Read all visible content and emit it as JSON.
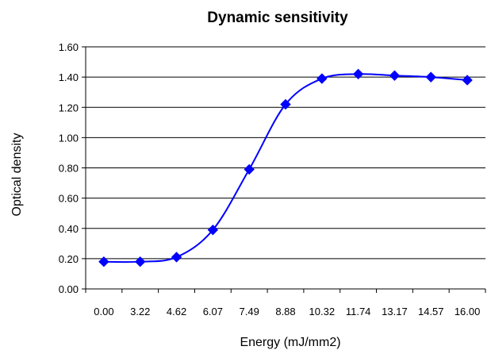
{
  "chart_data": {
    "type": "line",
    "title": "Dynamic sensitivity",
    "xlabel": "Energy (mJ/mm2)",
    "ylabel": "Optical density",
    "categories": [
      "0.00",
      "3.22",
      "4.62",
      "6.07",
      "7.49",
      "8.88",
      "10.32",
      "11.74",
      "13.17",
      "14.57",
      "16.00"
    ],
    "series": [
      {
        "values": [
          0.18,
          0.18,
          0.21,
          0.39,
          0.79,
          1.22,
          1.39,
          1.42,
          1.41,
          1.4,
          1.38
        ]
      }
    ],
    "ylim": [
      0,
      1.6
    ],
    "yticks": [
      "0.00",
      "0.20",
      "0.40",
      "0.60",
      "0.80",
      "1.00",
      "1.20",
      "1.40",
      "1.60"
    ],
    "grid": true,
    "smooth": true,
    "marker": "diamond",
    "line_color": "#0000ff",
    "marker_color": "#0000ff",
    "grid_color": "#000000"
  }
}
